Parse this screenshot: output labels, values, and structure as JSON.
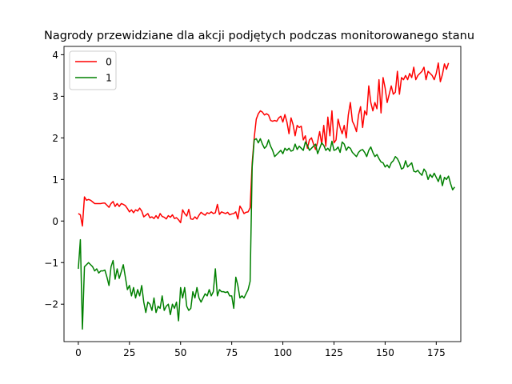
{
  "chart_data": {
    "type": "line",
    "title": "Nagrody przewidziane dla akcji podjętych podczas monitorowanego stanu",
    "xlabel": "",
    "ylabel": "",
    "xlim": [
      -7,
      187
    ],
    "ylim": [
      -2.9,
      4.2
    ],
    "xticks": [
      0,
      25,
      50,
      75,
      100,
      125,
      150,
      175
    ],
    "yticks": [
      -2,
      -1,
      0,
      1,
      2,
      3,
      4
    ],
    "ytick_labels": [
      "−2",
      "−1",
      "0",
      "1",
      "2",
      "3",
      "4"
    ],
    "grid": false,
    "legend_position": "top-left",
    "series": [
      {
        "name": "0",
        "color": "#ff0000",
        "values": [
          0.18,
          0.15,
          -0.12,
          0.58,
          0.5,
          0.52,
          0.5,
          0.46,
          0.42,
          0.42,
          0.42,
          0.42,
          0.43,
          0.43,
          0.38,
          0.33,
          0.42,
          0.47,
          0.35,
          0.42,
          0.35,
          0.42,
          0.4,
          0.37,
          0.3,
          0.22,
          0.27,
          0.2,
          0.27,
          0.24,
          0.31,
          0.24,
          0.1,
          0.14,
          0.18,
          0.08,
          0.1,
          0.06,
          0.13,
          0.06,
          0.18,
          0.11,
          0.09,
          0.05,
          0.13,
          0.09,
          0.15,
          0.06,
          0.08,
          0.03,
          -0.04,
          0.27,
          0.18,
          0.12,
          0.28,
          0.05,
          0.04,
          0.1,
          0.05,
          0.14,
          0.21,
          0.17,
          0.14,
          0.2,
          0.18,
          0.22,
          0.18,
          0.2,
          0.4,
          0.16,
          0.22,
          0.2,
          0.18,
          0.21,
          0.15,
          0.17,
          0.18,
          0.22,
          0.05,
          0.36,
          0.28,
          0.18,
          0.21,
          0.22,
          0.32,
          1.4,
          2.0,
          2.45,
          2.58,
          2.65,
          2.62,
          2.55,
          2.58,
          2.55,
          2.42,
          2.4,
          2.42,
          2.4,
          2.48,
          2.52,
          2.38,
          2.56,
          2.38,
          2.1,
          2.48,
          2.32,
          2.05,
          2.3,
          2.25,
          2.28,
          1.95,
          2.05,
          1.75,
          1.95,
          2.0,
          1.85,
          1.72,
          1.9,
          2.15,
          1.85,
          2.3,
          1.8,
          2.5,
          2.05,
          2.65,
          1.88,
          1.95,
          2.45,
          2.25,
          2.1,
          2.3,
          2.0,
          2.55,
          2.85,
          2.4,
          2.3,
          2.15,
          2.55,
          2.75,
          2.25,
          2.65,
          2.55,
          3.25,
          2.85,
          2.65,
          2.85,
          2.7,
          3.4,
          2.6,
          3.45,
          3.2,
          2.85,
          3.05,
          3.25,
          3.05,
          3.1,
          3.6,
          3.05,
          3.45,
          3.4,
          3.5,
          3.4,
          3.55,
          3.45,
          3.7,
          3.4,
          3.5,
          3.55,
          3.6,
          3.7,
          3.4,
          3.6,
          3.55,
          3.5,
          3.4,
          3.55,
          3.8,
          3.35,
          3.52,
          3.78,
          3.65,
          3.8
        ]
      },
      {
        "name": "1",
        "color": "#008000",
        "values": [
          -1.15,
          -0.45,
          -2.6,
          -1.1,
          -1.05,
          -1.0,
          -1.05,
          -1.1,
          -1.2,
          -1.15,
          -1.25,
          -1.2,
          -1.2,
          -1.18,
          -1.35,
          -1.55,
          -1.1,
          -0.95,
          -1.4,
          -1.15,
          -1.38,
          -1.22,
          -1.05,
          -1.35,
          -1.65,
          -1.55,
          -1.8,
          -1.6,
          -1.85,
          -1.65,
          -1.8,
          -1.55,
          -1.95,
          -2.2,
          -1.95,
          -2.0,
          -2.15,
          -1.85,
          -2.2,
          -2.05,
          -2.1,
          -1.8,
          -2.15,
          -2.05,
          -2.0,
          -2.25,
          -2.0,
          -2.1,
          -1.95,
          -2.4,
          -1.6,
          -1.85,
          -1.6,
          -2.05,
          -2.15,
          -2.1,
          -1.7,
          -1.85,
          -1.6,
          -1.85,
          -1.95,
          -1.85,
          -1.75,
          -1.8,
          -1.65,
          -1.8,
          -1.7,
          -1.15,
          -1.8,
          -1.65,
          -1.7,
          -1.7,
          -1.72,
          -1.7,
          -1.8,
          -1.8,
          -2.1,
          -1.35,
          -1.55,
          -1.85,
          -1.8,
          -1.85,
          -1.75,
          -1.65,
          -1.45,
          1.3,
          1.95,
          1.98,
          1.88,
          1.98,
          1.85,
          1.75,
          1.8,
          1.95,
          1.8,
          1.7,
          1.55,
          1.6,
          1.65,
          1.7,
          1.62,
          1.75,
          1.7,
          1.75,
          1.68,
          1.7,
          1.85,
          1.72,
          1.8,
          1.75,
          1.7,
          1.9,
          1.82,
          1.7,
          1.75,
          1.8,
          1.85,
          1.62,
          1.75,
          1.88,
          1.82,
          1.7,
          1.75,
          1.68,
          1.92,
          1.7,
          1.72,
          1.78,
          1.65,
          1.9,
          1.85,
          1.7,
          1.78,
          1.75,
          1.65,
          1.6,
          1.55,
          1.65,
          1.7,
          1.72,
          1.65,
          1.55,
          1.7,
          1.78,
          1.65,
          1.55,
          1.6,
          1.5,
          1.42,
          1.4,
          1.3,
          1.35,
          1.28,
          1.4,
          1.45,
          1.55,
          1.5,
          1.4,
          1.25,
          1.28,
          1.45,
          1.3,
          1.35,
          1.4,
          1.2,
          1.18,
          1.22,
          1.15,
          1.1,
          1.25,
          1.18,
          1.0,
          1.12,
          1.05,
          1.15,
          1.05,
          0.95,
          1.1,
          0.85,
          1.05,
          1.0,
          1.08,
          0.9,
          0.75,
          0.82
        ]
      }
    ]
  }
}
